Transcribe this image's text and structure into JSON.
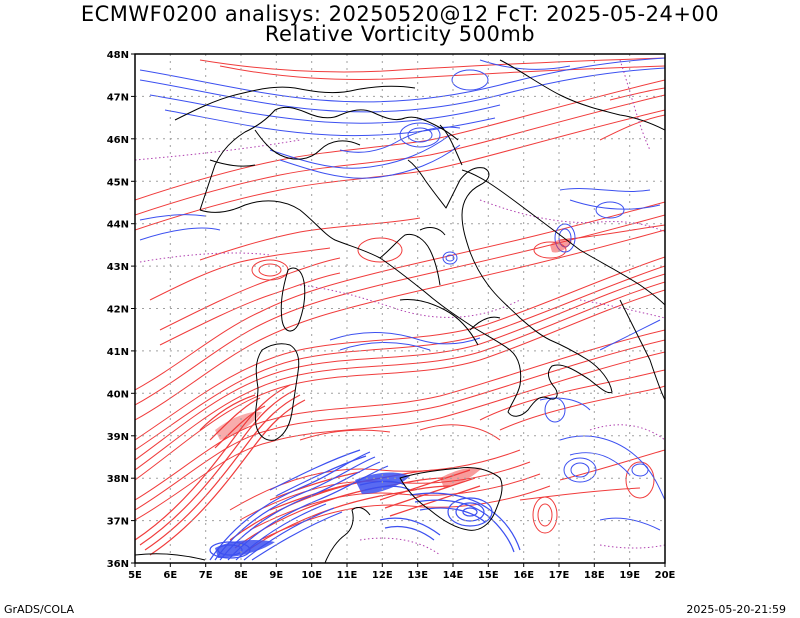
{
  "header": {
    "title_line1": "ECMWF0200 analisys: 20250520@12 FcT: 2025-05-24+00",
    "title_line2": "Relative Vorticity 500mb"
  },
  "footer": {
    "left": "GrADS/COLA",
    "right": "2025-05-20-21:59"
  },
  "map": {
    "lon_labels": [
      "5E",
      "6E",
      "7E",
      "8E",
      "9E",
      "10E",
      "11E",
      "12E",
      "13E",
      "14E",
      "15E",
      "16E",
      "17E",
      "18E",
      "19E",
      "20E"
    ],
    "lat_labels": [
      "48N",
      "47N",
      "46N",
      "45N",
      "44N",
      "43N",
      "42N",
      "41N",
      "40N",
      "39N",
      "38N",
      "37N",
      "36N"
    ],
    "colors": {
      "positive_vorticity": "#f03c3c",
      "negative_vorticity": "#3c50f0",
      "zero_line": "#b040b0",
      "coastline": "#000000",
      "grid": "#a0a0a0"
    }
  }
}
